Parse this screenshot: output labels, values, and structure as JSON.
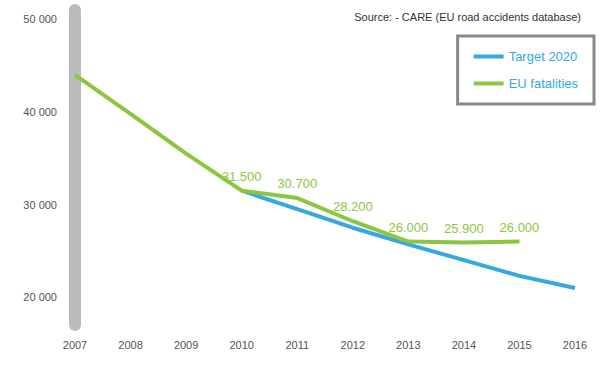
{
  "chart_data": {
    "type": "line",
    "title": "Source: - CARE (EU road accidents database)",
    "categories": [
      "2007",
      "2008",
      "2009",
      "2010",
      "2011",
      "2012",
      "2013",
      "2014",
      "2015",
      "2016"
    ],
    "series": [
      {
        "name": "Target 2020",
        "color": "#35a8e0",
        "values": [
          null,
          null,
          null,
          31500,
          29500,
          27500,
          25700,
          24000,
          22300,
          21000
        ]
      },
      {
        "name": "EU fatalities",
        "color": "#8cc63e",
        "values": [
          44000,
          39800,
          35500,
          31500,
          30700,
          28200,
          26000,
          25900,
          26000,
          null
        ],
        "data_labels": true,
        "value_labels": [
          null,
          null,
          null,
          "31.500",
          "30.700",
          "28.200",
          "26.000",
          "25.900",
          "26.000",
          null
        ]
      }
    ],
    "ylim": [
      17000,
      51000
    ],
    "yticks": [
      {
        "value": 20000,
        "label": "20 000"
      },
      {
        "value": 30000,
        "label": "30 000"
      },
      {
        "value": 40000,
        "label": "40 000"
      },
      {
        "value": 50000,
        "label": "50 000"
      }
    ],
    "grid": false,
    "legend": "top-right"
  }
}
